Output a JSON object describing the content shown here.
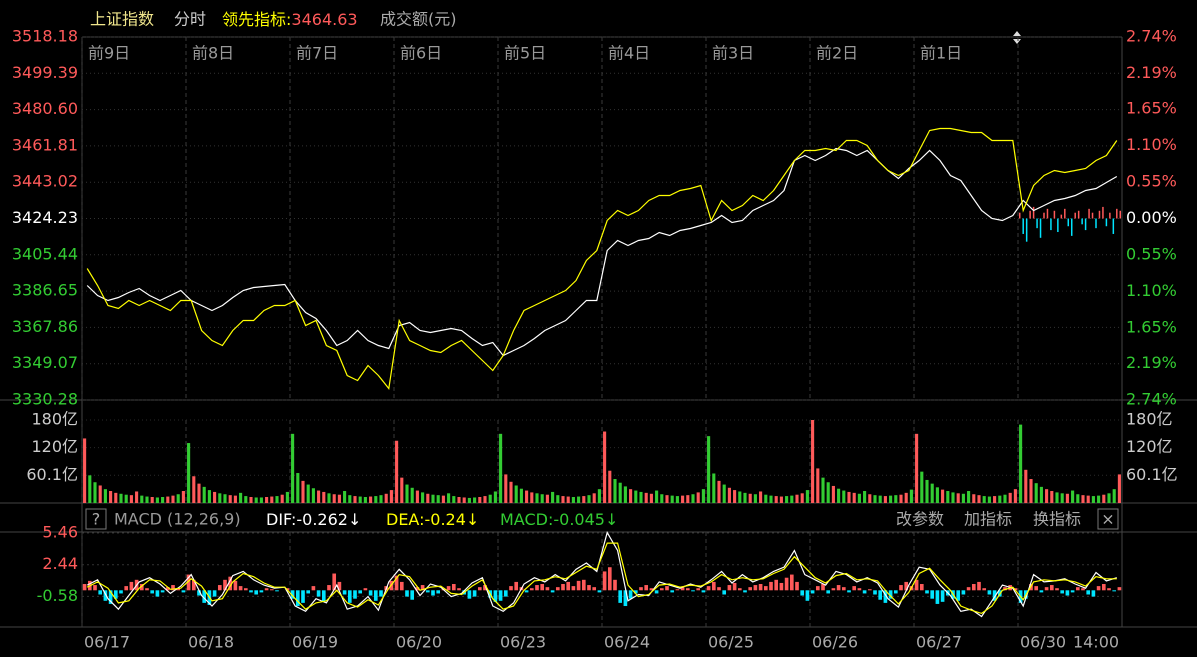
{
  "header": {
    "index_name": "上证指数",
    "mode": "分时",
    "indicator_label": "领先指标:",
    "indicator_value": 3464.63,
    "volume_label": "成交额(元)"
  },
  "chart_data": [
    {
      "type": "line",
      "ylim": [
        3330.28,
        3518.18
      ],
      "yticks": [
        3518.18,
        3499.39,
        {
          "value": 3480.6,
          "label": "3480.60"
        },
        3461.81,
        3443.02,
        3424.23,
        3405.44,
        3386.65,
        3367.86,
        3349.07,
        3330.28
      ],
      "y2lim": [
        -2.74,
        2.74
      ],
      "y2ticks": [
        {
          "value": 2.74,
          "label": "2.74%"
        },
        {
          "value": 2.19,
          "label": "2.19%"
        },
        {
          "value": 1.65,
          "label": "1.65%"
        },
        {
          "value": 1.1,
          "label": "1.10%"
        },
        {
          "value": 0.55,
          "label": "0.55%"
        },
        {
          "value": 0,
          "label": "0.00%"
        },
        {
          "value": -0.55,
          "label": "0.55%"
        },
        {
          "value": -1.1,
          "label": "1.10%"
        },
        {
          "value": -1.65,
          "label": "1.65%"
        },
        {
          "value": -2.19,
          "label": "2.19%"
        },
        {
          "value": -2.74,
          "label": "2.74%"
        }
      ],
      "xlim": [
        0,
        10
      ],
      "xticks": [
        {
          "value": 0,
          "label": "前9日"
        },
        {
          "value": 1,
          "label": "前8日"
        },
        {
          "value": 2,
          "label": "前7日"
        },
        {
          "value": 3,
          "label": "前6日"
        },
        {
          "value": 4,
          "label": "前5日"
        },
        {
          "value": 5,
          "label": "前4日"
        },
        {
          "value": 6,
          "label": "前3日"
        },
        {
          "value": 7,
          "label": "前2日"
        },
        {
          "value": 8,
          "label": "前1日"
        }
      ],
      "grid": true,
      "up_color": "#ff5a5a",
      "down_color": "#33cc33",
      "flat_color": "#ffffff",
      "series": [
        {
          "color": "#ffffff",
          "values": [
            3389.55,
            3384.37,
            3381.79,
            3383.34,
            3385.93,
            3388.0,
            3384.37,
            3381.79,
            3384.37,
            3386.96,
            3381.79,
            3379.2,
            3376.61,
            3379.2,
            3383.34,
            3386.96,
            3388.52,
            3389.03,
            3389.55,
            3390.07,
            3381.79,
            3375.58,
            3372.47,
            3366.26,
            3358.49,
            3361.08,
            3366.26,
            3361.08,
            3358.49,
            3356.94,
            3368.85,
            3370.4,
            3366.26,
            3365.22,
            3366.26,
            3367.29,
            3366.26,
            3362.12,
            3358.49,
            3360.05,
            3353.32,
            3355.91,
            3358.49,
            3362.12,
            3366.26,
            3368.85,
            3371.43,
            3376.61,
            3381.79,
            3381.79,
            3407.67,
            3412.84,
            3410.25,
            3412.84,
            3413.88,
            3416.98,
            3415.43,
            3418.02,
            3419.05,
            3420.61,
            3422.16,
            3425.78,
            3422.16,
            3423.19,
            3428.37,
            3430.96,
            3433.55,
            3438.72,
            3454.25,
            3456.84,
            3454.25,
            3456.84,
            3460.46,
            3459.43,
            3456.84,
            3459.43,
            3454.25,
            3449.07,
            3444.93,
            3450.11,
            3454.25,
            3459.43,
            3454.25,
            3446.49,
            3443.9,
            3436.13,
            3428.37,
            3424.23,
            3423.19,
            3425.78,
            3433.55,
            3428.37,
            3430.96,
            3433.55,
            3434.58,
            3436.13,
            3438.72,
            3439.76,
            3442.86,
            3445.97
          ]
        },
        {
          "color": "#ffff00",
          "values": [
            3398.35,
            3389.55,
            3379.2,
            3377.65,
            3381.79,
            3379.2,
            3381.79,
            3379.2,
            3376.61,
            3381.79,
            3381.79,
            3366.26,
            3361.08,
            3358.49,
            3366.26,
            3371.43,
            3371.43,
            3376.61,
            3379.2,
            3379.2,
            3381.79,
            3368.85,
            3371.43,
            3358.49,
            3355.91,
            3342.97,
            3340.38,
            3348.14,
            3342.97,
            3336.24,
            3371.43,
            3361.08,
            3358.49,
            3355.91,
            3354.87,
            3358.49,
            3361.08,
            3355.91,
            3350.73,
            3345.55,
            3353.32,
            3366.26,
            3376.61,
            3379.2,
            3381.79,
            3384.37,
            3386.96,
            3392.14,
            3402.49,
            3407.67,
            3423.19,
            3428.37,
            3425.78,
            3428.37,
            3433.55,
            3436.13,
            3436.13,
            3438.72,
            3439.76,
            3441.31,
            3423.19,
            3433.55,
            3428.37,
            3430.96,
            3436.13,
            3433.55,
            3438.72,
            3446.49,
            3454.25,
            3459.43,
            3459.43,
            3460.46,
            3459.43,
            3464.6,
            3464.6,
            3462.01,
            3454.25,
            3449.07,
            3446.49,
            3449.07,
            3459.43,
            3469.78,
            3470.81,
            3470.81,
            3469.78,
            3468.74,
            3468.74,
            3464.6,
            3464.6,
            3464.6,
            3428.37,
            3441.31,
            3446.49,
            3449.07,
            3448.04,
            3449.07,
            3450.11,
            3454.25,
            3456.84,
            3464.6
          ]
        }
      ],
      "flow": {
        "xlim": [
          9,
          10
        ],
        "up_color": "#ff5a5a",
        "down_color": "#00e5ff",
        "values": [
          3,
          -8,
          -12,
          4,
          6,
          -5,
          -10,
          3,
          5,
          -6,
          4,
          -7,
          2,
          5,
          -4,
          -9,
          3,
          4,
          -3,
          -6,
          5,
          3,
          -5,
          4,
          6,
          -4,
          3,
          -8,
          5,
          4
        ]
      }
    },
    {
      "type": "bar",
      "ylim": [
        0,
        180
      ],
      "yticks": [
        {
          "value": 180,
          "label": "180亿"
        },
        {
          "value": 120,
          "label": "120亿"
        },
        {
          "value": 60.1,
          "label": "60.1亿"
        }
      ],
      "xlim": [
        0,
        10
      ],
      "up_color": "#ff5a5a",
      "down_color": "#33cc33",
      "values": [
        140,
        60,
        45,
        38,
        30,
        26,
        22,
        20,
        18,
        17,
        25,
        16,
        14,
        13,
        12,
        13,
        14,
        16,
        19,
        26,
        130,
        58,
        42,
        35,
        28,
        24,
        21,
        19,
        17,
        16,
        22,
        15,
        13,
        12,
        12,
        13,
        14,
        15,
        18,
        24,
        150,
        65,
        48,
        40,
        32,
        27,
        24,
        21,
        19,
        18,
        26,
        17,
        15,
        14,
        13,
        14,
        15,
        17,
        20,
        28,
        135,
        55,
        40,
        33,
        27,
        23,
        20,
        18,
        17,
        16,
        21,
        15,
        13,
        12,
        11,
        12,
        13,
        15,
        18,
        25,
        150,
        62,
        46,
        38,
        31,
        27,
        23,
        21,
        19,
        18,
        24,
        17,
        15,
        14,
        13,
        14,
        15,
        17,
        21,
        30,
        155,
        70,
        52,
        44,
        36,
        30,
        27,
        24,
        22,
        20,
        27,
        19,
        17,
        16,
        15,
        16,
        17,
        19,
        23,
        30,
        145,
        64,
        48,
        40,
        33,
        28,
        25,
        22,
        20,
        19,
        25,
        18,
        16,
        15,
        14,
        15,
        16,
        18,
        21,
        28,
        180,
        75,
        55,
        45,
        37,
        31,
        27,
        24,
        22,
        20,
        26,
        19,
        17,
        16,
        15,
        16,
        17,
        18,
        22,
        29,
        150,
        68,
        50,
        42,
        34,
        29,
        26,
        23,
        21,
        20,
        26,
        19,
        17,
        15,
        14,
        15,
        16,
        18,
        22,
        30,
        170,
        72,
        52,
        43,
        35,
        30,
        26,
        23,
        21,
        20,
        27,
        19,
        17,
        16,
        15,
        16,
        18,
        21,
        30,
        62
      ],
      "rising": [
        "udduduudduuddudduudu",
        "duuddudduuddudduudud",
        "ddudduuduudduddudduu",
        "uuddududdudduudduudd",
        "duudduuddudduuddudud",
        "uudddudduuddudduudud",
        "dduduuddududduudduud",
        "uuddudduudduddudduud",
        "udddduddudduuddudduu",
        "duudduuddudduuddudduu"
      ]
    },
    {
      "type": "macd",
      "ylim": [
        -3.5,
        5.56
      ],
      "yticks": [
        5.46,
        2.44,
        -0.58
      ],
      "xlim": [
        0,
        10
      ],
      "xticks": [
        {
          "value": 0,
          "label": "06/17"
        },
        {
          "value": 1,
          "label": "06/18"
        },
        {
          "value": 2,
          "label": "06/19"
        },
        {
          "value": 3,
          "label": "06/20"
        },
        {
          "value": 4,
          "label": "06/23"
        },
        {
          "value": 5,
          "label": "06/24"
        },
        {
          "value": 6,
          "label": "06/25"
        },
        {
          "value": 7,
          "label": "06/26"
        },
        {
          "value": 8,
          "label": "06/27"
        },
        {
          "value": 9,
          "label": "06/30"
        }
      ],
      "time_label": {
        "value": 9.75,
        "label": "14:00"
      },
      "up_color": "#ff5a5a",
      "down_color": "#33cc33",
      "series": [
        {
          "color": "#ffffff",
          "values": [
            0.5,
            1.0,
            -0.8,
            -1.8,
            -0.5,
            0.8,
            1.2,
            0.6,
            -0.3,
            0.4,
            1.5,
            -0.5,
            -1.5,
            -0.4,
            1.4,
            1.8,
            1.0,
            0.5,
            0.2,
            0.3,
            -1.5,
            -2.0,
            -0.8,
            -1.2,
            0.5,
            -1.8,
            -1.5,
            -0.6,
            -1.9,
            0.8,
            2.0,
            1.0,
            -0.5,
            0.6,
            0.3,
            -0.6,
            -0.3,
            0.7,
            1.2,
            -1.5,
            -2.0,
            -1.2,
            0.6,
            1.2,
            0.8,
            1.5,
            0.9,
            2.0,
            2.6,
            1.8,
            5.5,
            3.8,
            -1.0,
            -0.4,
            -0.5,
            0.8,
            0.5,
            0.2,
            0.6,
            0.3,
            1.0,
            1.8,
            0.7,
            1.5,
            0.8,
            1.2,
            1.8,
            2.2,
            3.8,
            1.5,
            1.0,
            0.5,
            1.8,
            1.5,
            0.8,
            1.2,
            0.7,
            -0.8,
            -1.6,
            0.5,
            2.2,
            2.0,
            0.5,
            -0.5,
            -2.0,
            -1.8,
            -2.5,
            -1.0,
            0.5,
            0.2,
            -1.5,
            1.5,
            0.8,
            0.9,
            1.1,
            0.6,
            0.2,
            1.7,
            0.9,
            1.2
          ]
        },
        {
          "color": "#ffff00",
          "values": [
            0.3,
            0.8,
            0.2,
            -1.2,
            -1.0,
            0.2,
            1.0,
            0.9,
            0.1,
            0.2,
            1.1,
            0.4,
            -1.0,
            -0.8,
            0.8,
            1.6,
            1.3,
            0.7,
            0.3,
            0.3,
            -0.8,
            -1.8,
            -1.2,
            -1.0,
            0.0,
            -1.2,
            -1.6,
            -0.9,
            -1.4,
            0.2,
            1.5,
            1.3,
            0.0,
            0.3,
            0.4,
            -0.3,
            -0.4,
            0.4,
            1.0,
            -0.8,
            -1.8,
            -1.5,
            0.0,
            0.9,
            1.0,
            1.3,
            1.1,
            1.7,
            2.3,
            2.0,
            4.5,
            4.5,
            0.5,
            -0.6,
            -0.4,
            0.5,
            0.6,
            0.3,
            0.5,
            0.4,
            0.8,
            1.5,
            1.0,
            1.2,
            1.0,
            1.1,
            1.6,
            2.0,
            3.2,
            2.2,
            1.2,
            0.7,
            1.4,
            1.6,
            1.0,
            1.1,
            0.9,
            -0.3,
            -1.3,
            -0.2,
            1.6,
            2.1,
            1.0,
            0.0,
            -1.5,
            -1.9,
            -2.2,
            -1.5,
            0.0,
            0.3,
            -0.9,
            0.8,
            1.0,
            0.9,
            1.0,
            0.8,
            0.4,
            1.3,
            1.1,
            1.1
          ]
        }
      ],
      "histogram": {
        "up_color": "#ff5a5a",
        "down_color": "#00e5ff",
        "values": [
          0.6,
          0.9,
          0.5,
          -0.4,
          -1.0,
          -1.3,
          -0.8,
          -0.3,
          0.4,
          0.8,
          1.0,
          0.6,
          0.2,
          -0.3,
          -0.6,
          -0.2,
          0.3,
          0.5,
          0.2,
          -0.2,
          1.5,
          1.0,
          -0.5,
          -1.2,
          -1.4,
          -0.6,
          0.5,
          1.0,
          1.3,
          0.9,
          0.4,
          0.2,
          -0.2,
          -0.4,
          -0.2,
          0.2,
          0.1,
          -0.1,
          0.0,
          0.2,
          -0.8,
          -1.5,
          -1.2,
          -0.3,
          0.4,
          -0.6,
          -1.1,
          0.5,
          1.6,
          0.8,
          -0.4,
          -1.2,
          -0.8,
          -0.3,
          0.2,
          -0.5,
          -1.0,
          -0.6,
          0.4,
          0.9,
          1.4,
          0.8,
          -0.6,
          -0.9,
          0.3,
          0.5,
          -0.2,
          -0.5,
          -0.3,
          0.1,
          0.4,
          0.6,
          0.2,
          -0.4,
          -0.8,
          -0.6,
          0.3,
          0.5,
          -0.7,
          -1.1,
          -1.0,
          -0.6,
          0.4,
          0.8,
          0.3,
          -0.2,
          0.2,
          0.5,
          0.6,
          0.3,
          -0.2,
          0.3,
          0.6,
          0.8,
          0.4,
          0.9,
          1.0,
          0.5,
          0.3,
          -0.2,
          1.8,
          2.2,
          1.0,
          -1.2,
          -1.5,
          -0.8,
          -0.3,
          0.3,
          0.5,
          0.2,
          -0.3,
          0.2,
          0.4,
          -0.2,
          0.1,
          0.3,
          0.2,
          -0.1,
          0.2,
          -0.2,
          0.4,
          0.8,
          0.3,
          -0.4,
          0.5,
          0.7,
          0.2,
          -0.2,
          0.3,
          0.5,
          0.6,
          0.4,
          0.8,
          1.0,
          0.7,
          1.2,
          1.5,
          0.8,
          -0.5,
          -1.0,
          -0.3,
          0.4,
          0.6,
          -0.3,
          0.2,
          0.5,
          0.3,
          -0.2,
          0.4,
          0.2,
          -0.3,
          0.1,
          -0.4,
          -0.9,
          -1.2,
          -0.8,
          -0.3,
          0.5,
          0.8,
          0.4,
          1.0,
          0.6,
          -0.3,
          -0.8,
          -1.3,
          -1.1,
          -0.5,
          -0.8,
          -1.0,
          -0.4,
          0.3,
          0.6,
          0.8,
          0.2,
          -0.4,
          -1.0,
          -0.6,
          0.3,
          0.5,
          0.2,
          -1.2,
          -0.8,
          0.6,
          0.4,
          -0.2,
          0.3,
          0.5,
          0.2,
          -0.3,
          -0.5,
          -0.2,
          0.3,
          0.2,
          -0.4,
          -0.6,
          0.4,
          0.6,
          0.2,
          -0.1,
          0.3
        ]
      }
    }
  ],
  "macd_toolbar": {
    "help": "?",
    "name": "MACD (12,26,9)",
    "dif": {
      "label": "DIF:",
      "value": -0.262,
      "trend": "↓"
    },
    "dea": {
      "label": "DEA:",
      "value": -0.24,
      "trend": "↓"
    },
    "macd": {
      "label": "MACD:",
      "value": -0.045,
      "trend": "↓"
    },
    "buttons": [
      "改参数",
      "加指标",
      "换指标"
    ],
    "close": "×"
  }
}
